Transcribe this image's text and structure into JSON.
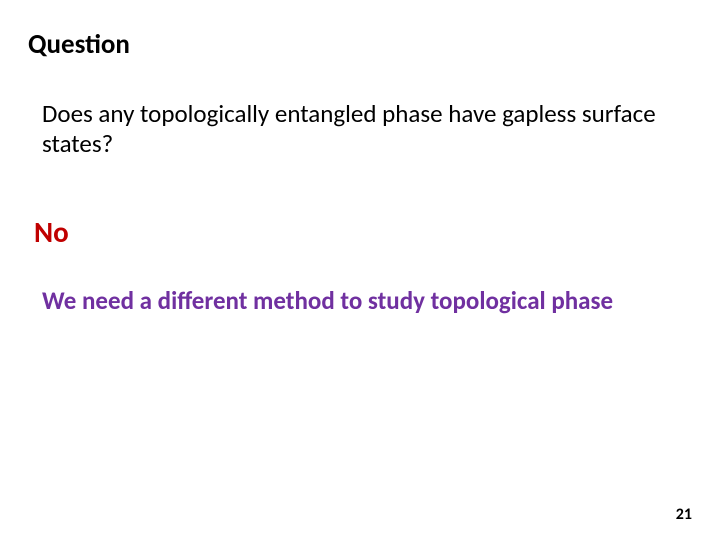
{
  "slide": {
    "title": "Question",
    "question_text": "Does any topologically entangled phase have gapless surface states?",
    "answer": "No",
    "conclusion": "We need  a different method to study topological phase",
    "page_number": "21"
  },
  "styles": {
    "background_color": "#ffffff",
    "title_color": "#000000",
    "title_fontsize": 27,
    "title_fontweight": 700,
    "question_color": "#000000",
    "question_fontsize": 25,
    "question_fontweight": 400,
    "answer_color": "#c00000",
    "answer_fontsize": 29,
    "answer_fontweight": 700,
    "conclusion_color": "#7030a0",
    "conclusion_fontsize": 25,
    "conclusion_fontweight": 700,
    "page_number_color": "#000000",
    "page_number_fontsize": 16,
    "page_number_fontweight": 700,
    "font_family": "Calibri, 'Segoe UI', Arial, sans-serif",
    "slide_width": 720,
    "slide_height": 540
  }
}
